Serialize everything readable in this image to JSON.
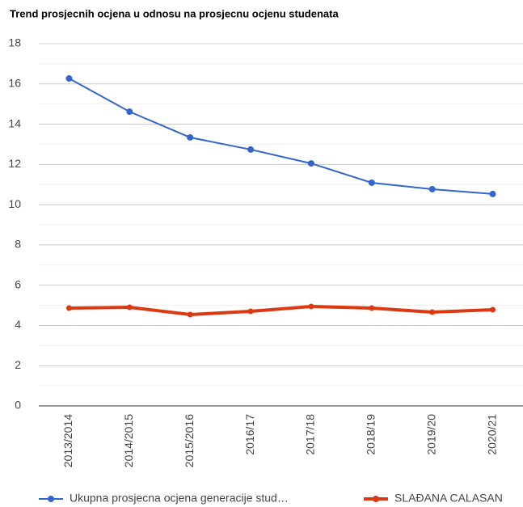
{
  "chart_data": {
    "type": "line",
    "title": "Trend prosjecnih ocjena u odnosu na prosjecnu ocjenu studenata",
    "categories": [
      "2013/2014",
      "2014/2015",
      "2015/2016",
      "2016/17",
      "2017/18",
      "2018/19",
      "2019/20",
      "2020/21"
    ],
    "series": [
      {
        "name": "Ukupna prosjecna ocjena generacije stud…",
        "color": "#3366cc",
        "values": [
          16.27,
          14.62,
          13.34,
          12.74,
          12.05,
          11.09,
          10.77,
          10.53
        ]
      },
      {
        "name": "SLAĐANA CALASAN",
        "color": "#dc3912",
        "values": [
          4.86,
          4.9,
          4.54,
          4.7,
          4.94,
          4.86,
          4.66,
          4.78
        ]
      }
    ],
    "ylim": [
      0,
      18
    ],
    "yticks": [
      0,
      2,
      4,
      6,
      8,
      10,
      12,
      14,
      16,
      18
    ],
    "y_minor_ticks": [
      1,
      3,
      5,
      7,
      9,
      11,
      13,
      15,
      17
    ],
    "grid": true,
    "legend": "bottom"
  }
}
